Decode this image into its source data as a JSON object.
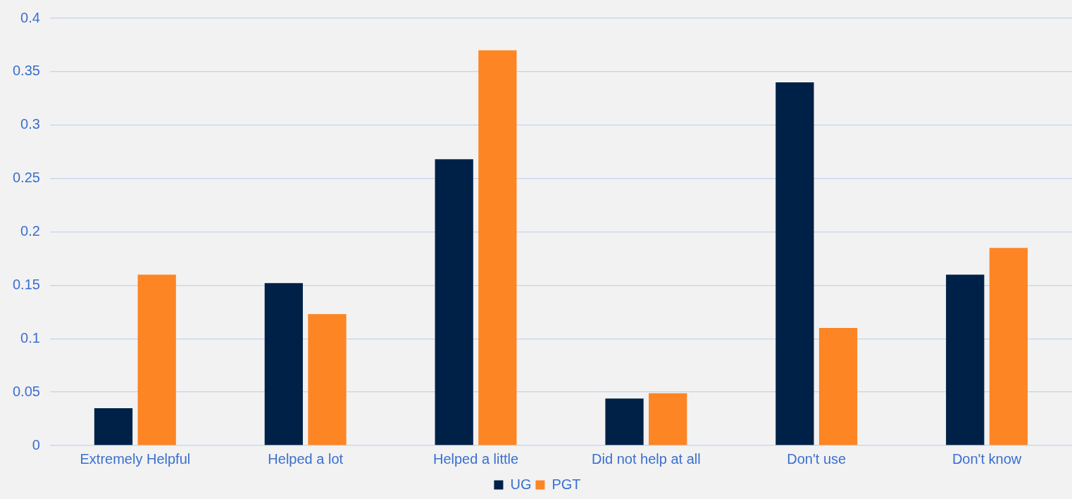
{
  "chart_data": {
    "type": "bar",
    "categories": [
      "Extremely Helpful",
      "Helped a lot",
      "Helped a little",
      "Did not help at all",
      "Don't use",
      "Don't know"
    ],
    "series": [
      {
        "name": "UG",
        "color": "#002147",
        "values": [
          0.035,
          0.152,
          0.268,
          0.044,
          0.34,
          0.16
        ]
      },
      {
        "name": "PGT",
        "color": "#fd8524",
        "values": [
          0.16,
          0.123,
          0.37,
          0.049,
          0.11,
          0.185
        ]
      }
    ],
    "ylim": [
      0,
      0.4
    ],
    "yticks": [
      0,
      0.05,
      0.1,
      0.15,
      0.2,
      0.25,
      0.3,
      0.35,
      0.4
    ],
    "grid": "y",
    "legend": "bottom"
  }
}
